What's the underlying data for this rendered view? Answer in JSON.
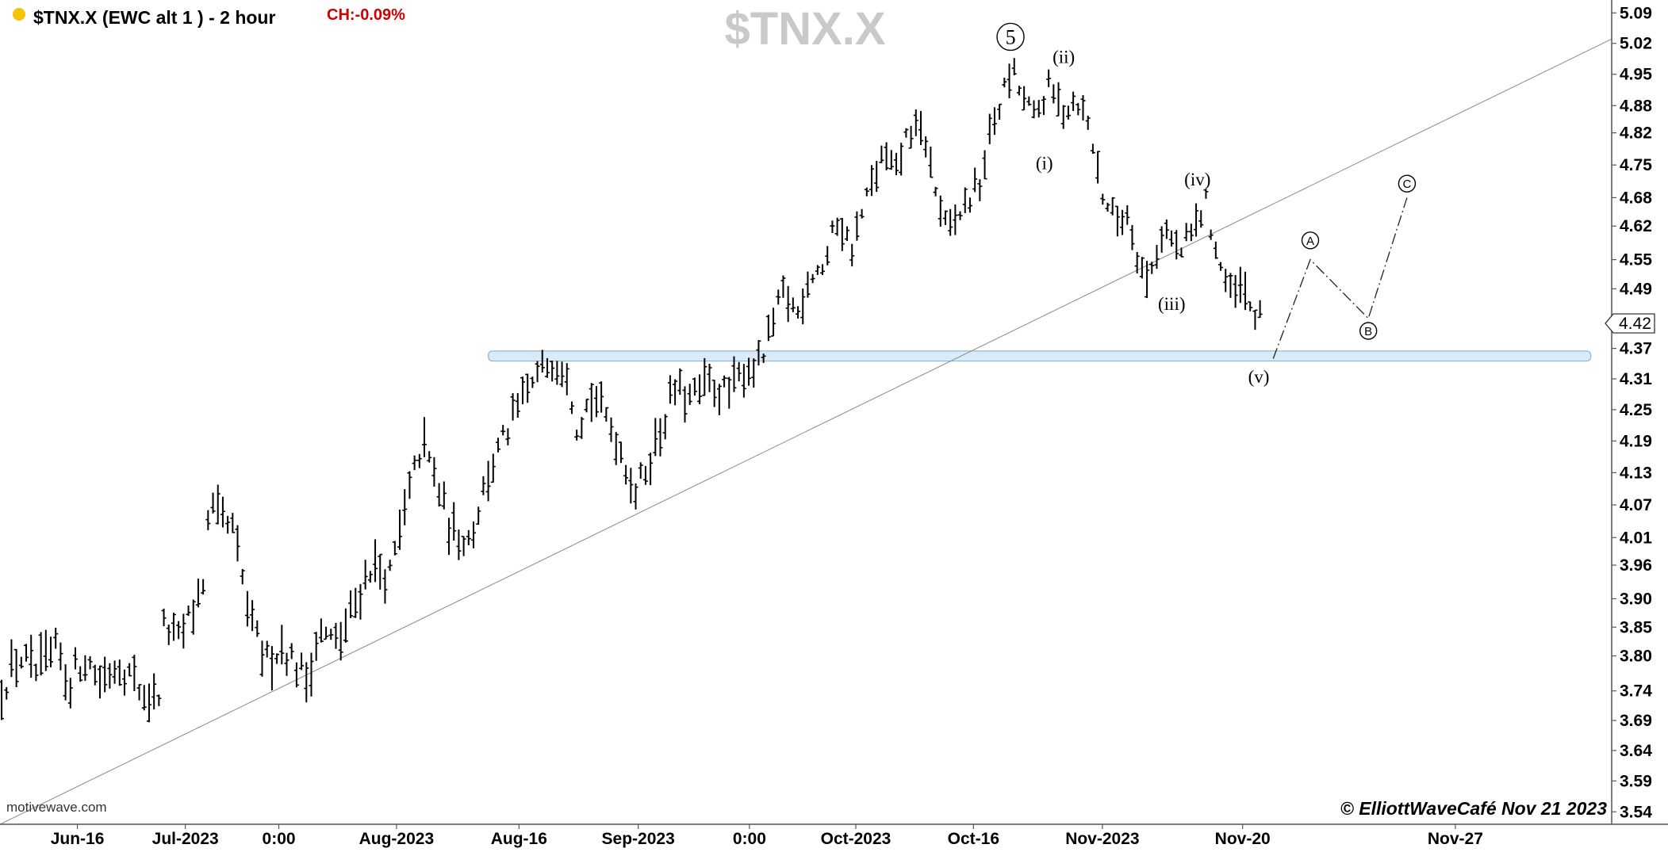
{
  "header": {
    "symbol_desc": "$TNX.X (EWC alt 1 ) - 2 hour",
    "change": "CH:-0.09%",
    "watermark": "$TNX.X",
    "status_dot_color": "#f5c400",
    "change_color": "#cc0000"
  },
  "footer": {
    "source": "motivewave.com",
    "copyright": "© ElliottWaveCafé Nov 21  2023"
  },
  "chart_data": {
    "type": "bar",
    "price_scale": "log",
    "ylim": [
      3.52,
      5.12
    ],
    "xlim": [
      0,
      1000
    ],
    "y_ticks": [
      5.09,
      5.02,
      4.95,
      4.88,
      4.82,
      4.75,
      4.68,
      4.62,
      4.55,
      4.49,
      4.42,
      4.37,
      4.31,
      4.25,
      4.19,
      4.13,
      4.07,
      4.01,
      3.96,
      3.9,
      3.85,
      3.8,
      3.74,
      3.69,
      3.64,
      3.59,
      3.54
    ],
    "last_price": 4.42,
    "x_ticks": [
      {
        "label": "Jun-16",
        "x": 48
      },
      {
        "label": "Jul-2023",
        "x": 115
      },
      {
        "label": "0:00",
        "x": 173
      },
      {
        "label": "Aug-2023",
        "x": 246
      },
      {
        "label": "Aug-16",
        "x": 322
      },
      {
        "label": "Sep-2023",
        "x": 396
      },
      {
        "label": "0:00",
        "x": 465
      },
      {
        "label": "Oct-2023",
        "x": 531
      },
      {
        "label": "Oct-16",
        "x": 604
      },
      {
        "label": "Nov-2023",
        "x": 684
      },
      {
        "label": "Nov-20",
        "x": 771
      },
      {
        "label": "Nov-27",
        "x": 903
      }
    ],
    "price_path": [
      [
        0,
        3.74
      ],
      [
        12,
        3.8
      ],
      [
        22,
        3.77
      ],
      [
        36,
        3.81
      ],
      [
        42,
        3.75
      ],
      [
        52,
        3.8
      ],
      [
        62,
        3.76
      ],
      [
        74,
        3.79
      ],
      [
        88,
        3.74
      ],
      [
        98,
        3.72
      ],
      [
        102,
        3.86
      ],
      [
        110,
        3.82
      ],
      [
        120,
        3.88
      ],
      [
        126,
        3.93
      ],
      [
        130,
        4.06
      ],
      [
        145,
        4.02
      ],
      [
        155,
        3.86
      ],
      [
        165,
        3.79
      ],
      [
        175,
        3.82
      ],
      [
        190,
        3.76
      ],
      [
        198,
        3.84
      ],
      [
        210,
        3.82
      ],
      [
        220,
        3.89
      ],
      [
        230,
        3.96
      ],
      [
        242,
        3.94
      ],
      [
        250,
        4.04
      ],
      [
        262,
        4.19
      ],
      [
        270,
        4.12
      ],
      [
        280,
        4.02
      ],
      [
        292,
        4.01
      ],
      [
        302,
        4.12
      ],
      [
        318,
        4.23
      ],
      [
        330,
        4.3
      ],
      [
        342,
        4.35
      ],
      [
        352,
        4.33
      ],
      [
        358,
        4.22
      ],
      [
        368,
        4.28
      ],
      [
        382,
        4.2
      ],
      [
        395,
        4.09
      ],
      [
        402,
        4.15
      ],
      [
        410,
        4.21
      ],
      [
        418,
        4.29
      ],
      [
        428,
        4.27
      ],
      [
        440,
        4.3
      ],
      [
        452,
        4.28
      ],
      [
        462,
        4.33
      ],
      [
        472,
        4.34
      ],
      [
        486,
        4.48
      ],
      [
        495,
        4.44
      ],
      [
        502,
        4.52
      ],
      [
        512,
        4.54
      ],
      [
        520,
        4.64
      ],
      [
        528,
        4.57
      ],
      [
        540,
        4.7
      ],
      [
        548,
        4.77
      ],
      [
        556,
        4.73
      ],
      [
        564,
        4.83
      ],
      [
        574,
        4.81
      ],
      [
        580,
        4.7
      ],
      [
        588,
        4.6
      ],
      [
        598,
        4.66
      ],
      [
        608,
        4.71
      ],
      [
        616,
        4.84
      ],
      [
        622,
        4.9
      ],
      [
        628,
        4.96
      ],
      [
        634,
        4.9
      ],
      [
        642,
        4.85
      ],
      [
        650,
        4.92
      ],
      [
        660,
        4.87
      ],
      [
        668,
        4.9
      ],
      [
        676,
        4.83
      ],
      [
        684,
        4.69
      ],
      [
        692,
        4.63
      ],
      [
        700,
        4.65
      ],
      [
        706,
        4.56
      ],
      [
        712,
        4.5
      ],
      [
        722,
        4.62
      ],
      [
        732,
        4.56
      ],
      [
        742,
        4.62
      ],
      [
        748,
        4.67
      ],
      [
        756,
        4.55
      ],
      [
        764,
        4.47
      ],
      [
        770,
        4.49
      ],
      [
        778,
        4.44
      ],
      [
        783,
        4.42
      ]
    ],
    "projection": [
      {
        "x": 790,
        "y": 4.35
      },
      {
        "x": 813,
        "y": 4.55
      },
      {
        "x": 849,
        "y": 4.43
      },
      {
        "x": 873,
        "y": 4.68
      }
    ],
    "support_zone": {
      "x_start": 303,
      "x_end": 987,
      "y_low": 4.345,
      "y_high": 4.365
    },
    "trendline": {
      "x1": 0,
      "y1": 3.52,
      "x2": 1000,
      "y2": 5.03
    },
    "wave_labels": [
      {
        "text": "5",
        "x": 627,
        "y": 5.035,
        "circled": true,
        "big": true
      },
      {
        "text": "(ii)",
        "x": 660,
        "y": 4.99
      },
      {
        "text": "(i)",
        "x": 648,
        "y": 4.755
      },
      {
        "text": "(iv)",
        "x": 743,
        "y": 4.72
      },
      {
        "text": "(iii)",
        "x": 727,
        "y": 4.46
      },
      {
        "text": "(v)",
        "x": 781,
        "y": 4.315
      },
      {
        "text": "A",
        "x": 813,
        "y": 4.59,
        "circled": true
      },
      {
        "text": "B",
        "x": 849,
        "y": 4.405,
        "circled": true
      },
      {
        "text": "C",
        "x": 873,
        "y": 4.71,
        "circled": true
      }
    ]
  }
}
